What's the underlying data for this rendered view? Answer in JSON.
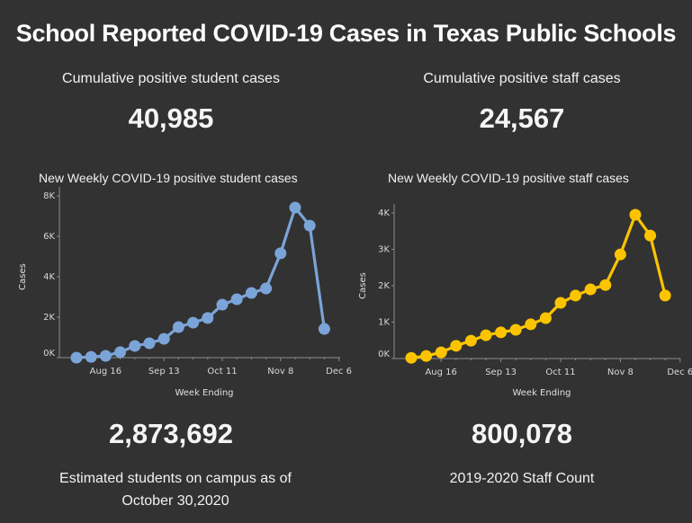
{
  "header": {
    "title": "School Reported COVID-19 Cases in Texas Public Schools"
  },
  "kpis": {
    "students": {
      "label": "Cumulative positive student cases",
      "value": "40,985"
    },
    "staff": {
      "label": "Cumulative positive staff cases",
      "value": "24,567"
    }
  },
  "footer": {
    "students": {
      "value": "2,873,692",
      "label_line1": "Estimated students on campus as of",
      "label_line2": "October 30,2020"
    },
    "staff": {
      "value": "800,078",
      "label_line1": "2019-2020 Staff Count"
    }
  },
  "colors": {
    "background": "#323232",
    "student_series": "#7ba4d8",
    "staff_series": "#fcc400",
    "axis": "#8c8c8c"
  },
  "chart_data": [
    {
      "type": "line",
      "title": "New Weekly COVID-19 positive student cases",
      "xlabel": "Week Ending",
      "ylabel": "Cases",
      "x": [
        "Aug 2",
        "Aug 9",
        "Aug 16",
        "Aug 23",
        "Aug 30",
        "Sep 6",
        "Sep 13",
        "Sep 20",
        "Sep 27",
        "Oct 4",
        "Oct 11",
        "Oct 18",
        "Oct 25",
        "Nov 1",
        "Nov 8",
        "Nov 15",
        "Nov 22",
        "Nov 29"
      ],
      "x_ticks": [
        "Aug 16",
        "Sep 13",
        "Oct 11",
        "Nov 8",
        "Dec 6"
      ],
      "y_ticks": [
        "0K",
        "2K",
        "4K",
        "6K",
        "8K"
      ],
      "ylim": [
        0,
        8000
      ],
      "grid": false,
      "series": [
        {
          "name": "Student cases",
          "color": "#7ba4d8",
          "values": [
            0,
            40,
            90,
            270,
            580,
            710,
            930,
            1510,
            1730,
            1960,
            2620,
            2890,
            3200,
            3420,
            5160,
            7420,
            6530,
            1420
          ]
        }
      ]
    },
    {
      "type": "line",
      "title": "New Weekly COVID-19 positive staff cases",
      "xlabel": "Week Ending",
      "ylabel": "Cases",
      "x": [
        "Aug 2",
        "Aug 9",
        "Aug 16",
        "Aug 23",
        "Aug 30",
        "Sep 6",
        "Sep 13",
        "Sep 20",
        "Sep 27",
        "Oct 4",
        "Oct 11",
        "Oct 18",
        "Oct 25",
        "Nov 1",
        "Nov 8",
        "Nov 15",
        "Nov 22",
        "Nov 29"
      ],
      "x_ticks": [
        "Aug 16",
        "Sep 13",
        "Oct 11",
        "Nov 8",
        "Dec 6"
      ],
      "y_ticks": [
        "0K",
        "1K",
        "2K",
        "3K",
        "4K"
      ],
      "ylim": [
        0,
        4000
      ],
      "grid": false,
      "series": [
        {
          "name": "Staff cases",
          "color": "#fcc400",
          "values": [
            20,
            70,
            170,
            350,
            490,
            640,
            720,
            790,
            940,
            1110,
            1530,
            1730,
            1900,
            2020,
            2860,
            3950,
            3380,
            1730
          ]
        }
      ]
    }
  ]
}
